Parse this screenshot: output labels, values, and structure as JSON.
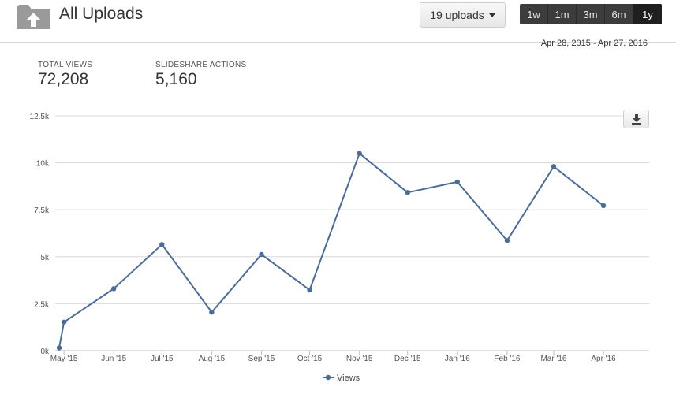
{
  "header": {
    "title": "All Uploads",
    "uploads_button": "19 uploads",
    "ranges": [
      "1w",
      "1m",
      "3m",
      "6m",
      "1y"
    ],
    "active_range": "1y"
  },
  "date_range": "Apr 28, 2015 - Apr 27, 2016",
  "metrics": {
    "total_views_label": "TOTAL VIEWS",
    "total_views_value": "72,208",
    "actions_label": "SLIDESHARE ACTIONS",
    "actions_value": "5,160"
  },
  "icons": {
    "folder": "folder-upload-icon",
    "download": "download-icon"
  },
  "colors": {
    "series": "#4a6c98"
  },
  "chart_data": {
    "type": "line",
    "title": "",
    "xlabel": "",
    "ylabel": "",
    "ylim": [
      0,
      12500
    ],
    "y_ticks": [
      0,
      2500,
      5000,
      7500,
      10000,
      12500
    ],
    "y_tick_labels": [
      "0k",
      "2.5k",
      "5k",
      "7.5k",
      "10k",
      "12.5k"
    ],
    "x_range": [
      "2015-04-28",
      "2016-04-27"
    ],
    "x_ticks": [
      "2015-05-01",
      "2015-06-01",
      "2015-07-01",
      "2015-08-01",
      "2015-09-01",
      "2015-10-01",
      "2015-11-01",
      "2015-12-01",
      "2016-01-01",
      "2016-02-01",
      "2016-03-01",
      "2016-04-01"
    ],
    "x_tick_labels": [
      "May '15",
      "Jun '15",
      "Jul '15",
      "Aug '15",
      "Sep '15",
      "Oct '15",
      "Nov '15",
      "Dec '15",
      "Jan '16",
      "Feb '16",
      "Mar '16",
      "Apr '16"
    ],
    "grid": true,
    "legend": "bottom-center",
    "series": [
      {
        "name": "Views",
        "x": [
          "2015-04-28",
          "2015-05-01",
          "2015-06-01",
          "2015-07-01",
          "2015-08-01",
          "2015-09-01",
          "2015-10-01",
          "2015-11-01",
          "2015-12-01",
          "2016-01-01",
          "2016-02-01",
          "2016-03-01",
          "2016-04-01"
        ],
        "values": [
          150,
          1520,
          3300,
          5650,
          2050,
          5120,
          3230,
          10500,
          8420,
          8980,
          5860,
          9800,
          7720
        ]
      }
    ]
  }
}
